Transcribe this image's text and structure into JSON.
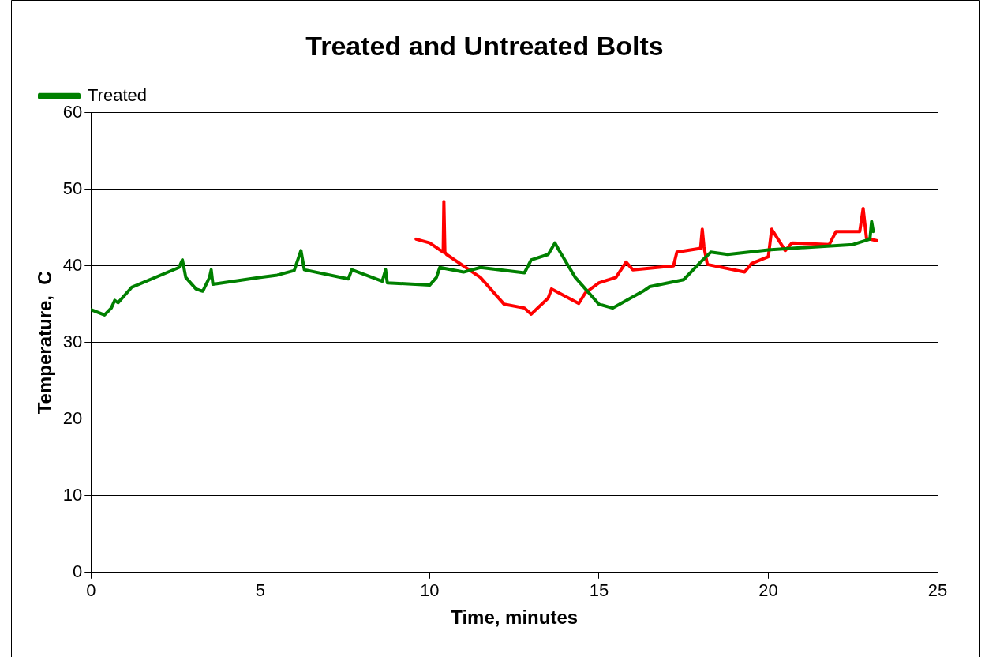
{
  "chart_data": {
    "type": "line",
    "title": "Treated and Untreated Bolts",
    "xlabel": "Time, minutes",
    "ylabel": "Temperature,  C",
    "xlim": [
      0,
      25
    ],
    "xticks": [
      0,
      5,
      10,
      15,
      20,
      25
    ],
    "ylim": [
      0,
      60
    ],
    "yticks": [
      0,
      10,
      20,
      30,
      40,
      50,
      60
    ],
    "grid": "y",
    "legend": "top left",
    "marker": "none",
    "line_style": "solid",
    "series": [
      {
        "name": "Treated",
        "color": "#008000",
        "x": [
          0,
          0.4,
          0.6,
          0.7,
          0.8,
          1.2,
          2.6,
          2.7,
          2.8,
          3.1,
          3.3,
          3.5,
          3.55,
          3.6,
          5,
          5.5,
          6,
          6.2,
          6.3,
          7.6,
          7.7,
          8.6,
          8.7,
          8.75,
          10,
          10.2,
          10.3,
          11,
          11.5,
          12.8,
          13,
          13.5,
          13.7,
          13.8,
          14.3,
          15,
          15.4,
          16.3,
          16.5,
          17.5,
          18,
          18.3,
          18.8,
          20,
          22.5,
          23,
          23.05,
          23.1
        ],
        "values": [
          34.3,
          33.6,
          34.5,
          35.5,
          35.2,
          37.2,
          39.8,
          40.8,
          38.5,
          37,
          36.7,
          38.5,
          39.5,
          37.6,
          38.5,
          38.8,
          39.4,
          42,
          39.5,
          38.3,
          39.5,
          38,
          39.5,
          37.8,
          37.5,
          38.5,
          39.8,
          39.2,
          39.8,
          39.1,
          40.8,
          41.5,
          43,
          42.2,
          38.5,
          35,
          34.5,
          36.7,
          37.3,
          38.2,
          40.5,
          41.8,
          41.5,
          42.1,
          42.8,
          43.5,
          45.8,
          44.5
        ]
      },
      {
        "color": "#ff0000",
        "x": [
          9.6,
          10,
          10.4,
          10.42,
          10.45,
          10.5,
          11,
          11.5,
          12.2,
          12.8,
          13,
          13.5,
          13.6,
          14.4,
          14.6,
          15,
          15.5,
          15.8,
          16,
          17.2,
          17.3,
          18,
          18.05,
          18.1,
          18.2,
          19.3,
          19.5,
          20,
          20.1,
          20.5,
          20.7,
          21.8,
          22,
          22.7,
          22.8,
          22.9,
          23.2
        ],
        "values": [
          43.5,
          43,
          41.8,
          48.4,
          41.8,
          41.5,
          40,
          38.5,
          35,
          34.5,
          33.7,
          35.8,
          37,
          35.1,
          36.5,
          37.8,
          38.5,
          40.5,
          39.5,
          40,
          41.8,
          42.3,
          44.8,
          42.5,
          40.2,
          39.2,
          40.3,
          41.2,
          44.8,
          42,
          43,
          42.8,
          44.5,
          44.5,
          47.5,
          43.6,
          43.3
        ]
      }
    ]
  }
}
